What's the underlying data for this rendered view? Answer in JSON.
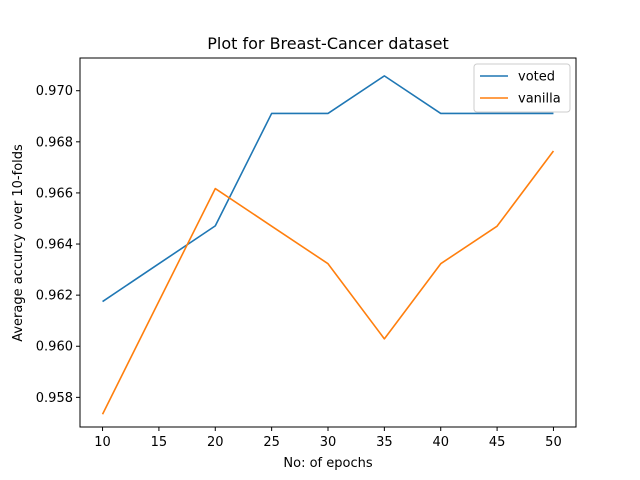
{
  "chart_data": {
    "type": "line",
    "title": "Plot for Breast-Cancer dataset",
    "xlabel": "No: of epochs",
    "ylabel": "Average accurcy over 10-folds",
    "x": [
      10,
      15,
      20,
      25,
      30,
      35,
      40,
      45,
      50
    ],
    "xticks": [
      10,
      15,
      20,
      25,
      30,
      35,
      40,
      45,
      50
    ],
    "yticks": [
      "0.958",
      "0.960",
      "0.962",
      "0.964",
      "0.966",
      "0.968",
      "0.970"
    ],
    "xlim": [
      8,
      52
    ],
    "ylim": [
      0.95684,
      0.97128
    ],
    "grid": false,
    "legend_position": "upper right",
    "series": [
      {
        "name": "voted",
        "color": "#1f77b4",
        "values": [
          0.96175,
          0.96323,
          0.96471,
          0.96911,
          0.96911,
          0.97058,
          0.96911,
          0.96911,
          0.96911
        ]
      },
      {
        "name": "vanilla",
        "color": "#ff7f0e",
        "values": [
          0.95734,
          0.96176,
          0.96617,
          0.9647,
          0.96323,
          0.96029,
          0.96323,
          0.9647,
          0.96764
        ]
      }
    ]
  }
}
